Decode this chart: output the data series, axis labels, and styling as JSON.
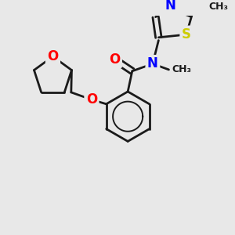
{
  "background_color": "#e8e8e8",
  "bond_color": "#1a1a1a",
  "bond_width": 2.0,
  "atom_colors": {
    "O": "#ff0000",
    "N": "#0000ff",
    "S": "#cccc00",
    "C": "#1a1a1a"
  },
  "font_size_atom": 11
}
